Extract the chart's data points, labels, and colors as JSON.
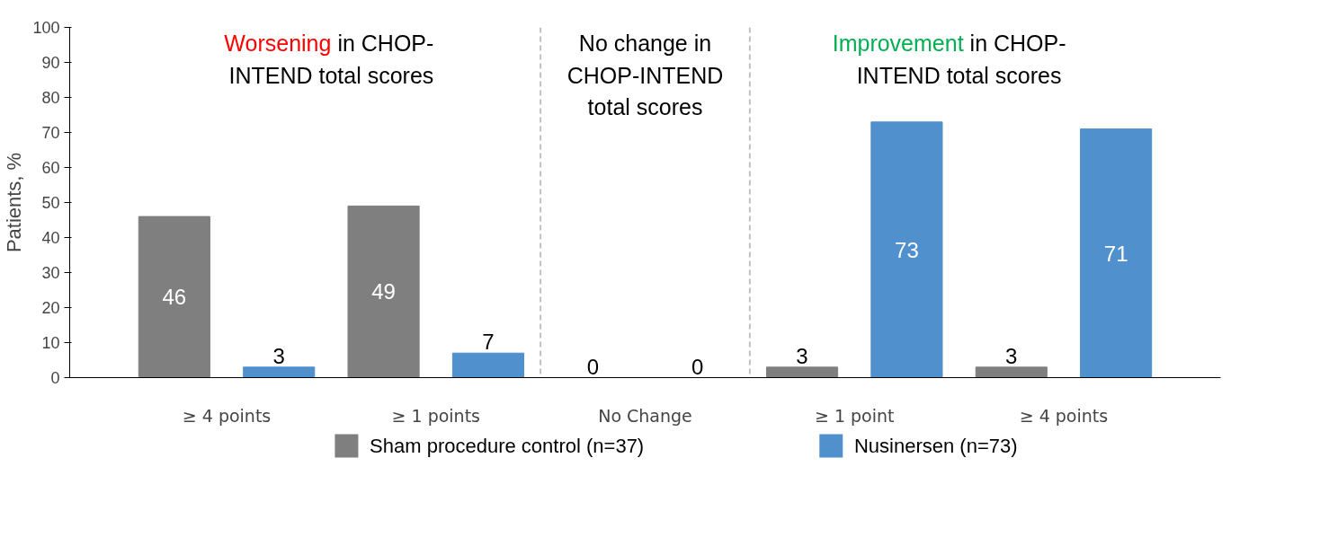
{
  "chart_data": {
    "type": "bar",
    "ylabel": "Patients, %",
    "categories": [
      "≥ 4 points",
      "≥ 1 points",
      "No Change",
      "≥ 1 point",
      "≥ 4 points"
    ],
    "series": [
      {
        "name": "Sham procedure control (n=37)",
        "color": "#7f7f7f",
        "values": [
          46,
          49,
          0,
          3,
          3
        ]
      },
      {
        "name": "Nusinersen (n=73)",
        "color": "#4f90cd",
        "values": [
          3,
          7,
          0,
          73,
          71
        ]
      }
    ],
    "ylim": [
      0,
      100
    ],
    "yticks": [
      0,
      10,
      20,
      30,
      40,
      50,
      60,
      70,
      80,
      90,
      100
    ],
    "data_labels": true,
    "grid": false,
    "legend": "bottom",
    "annotations": [
      "Worsening in CHOP-\nINTEND total scores",
      "No change in\nCHOP-INTEND\ntotal scores",
      "Improvement in CHOP-\nINTEND total scores"
    ]
  }
}
